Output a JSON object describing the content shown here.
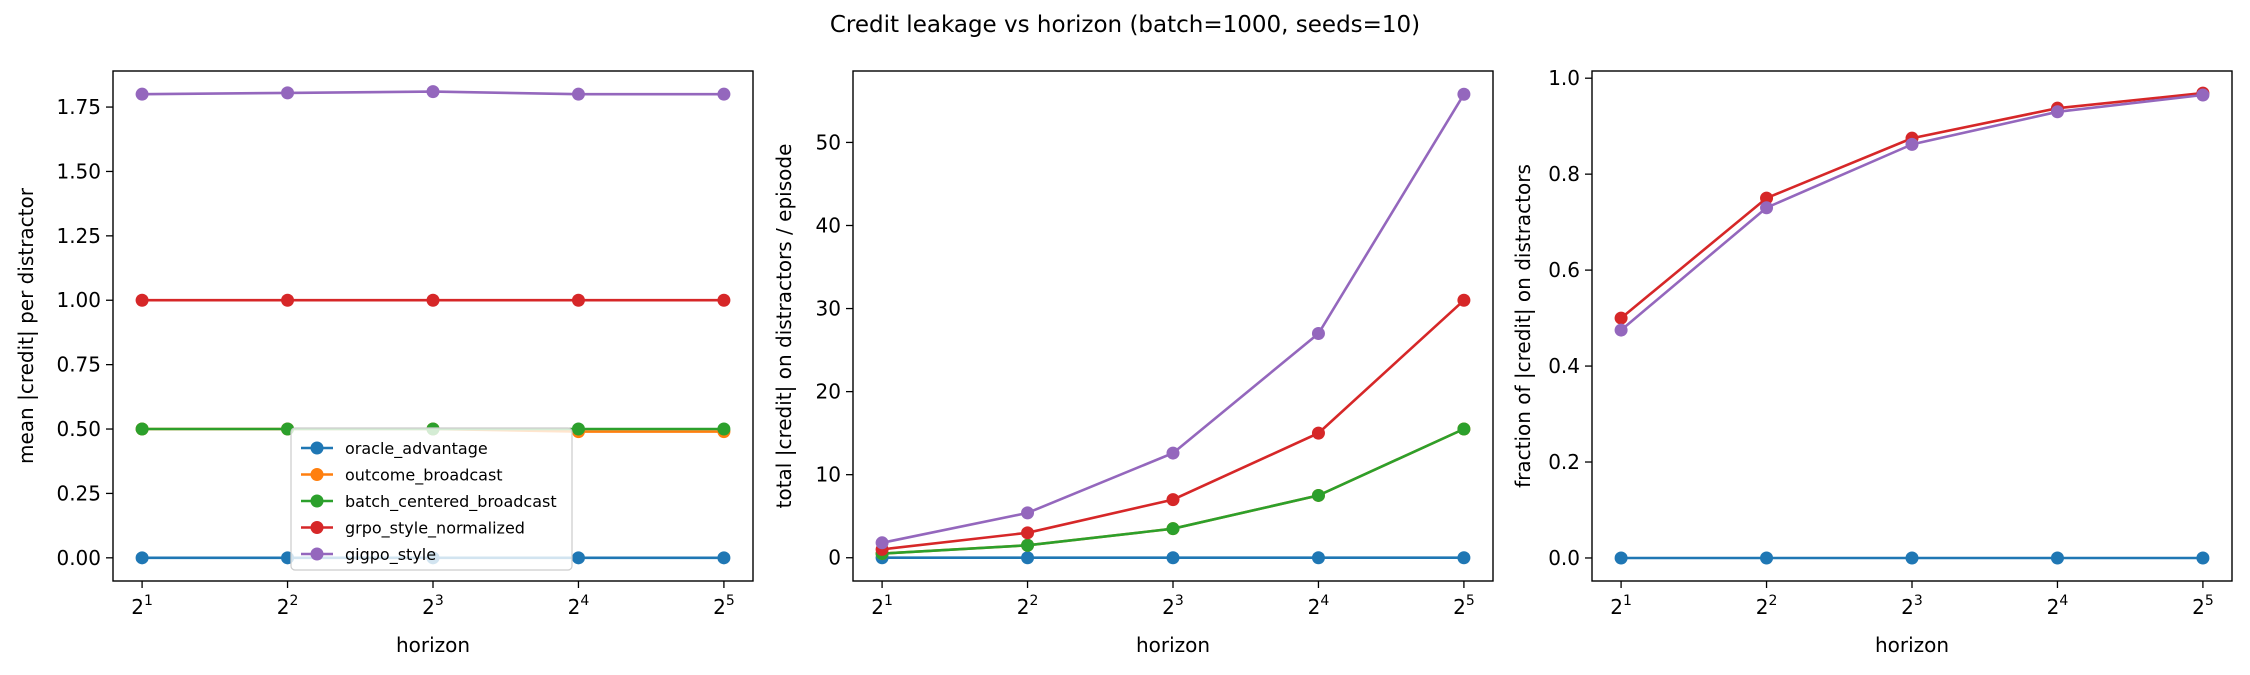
{
  "title": "Credit leakage vs horizon (batch=1000, seeds=10)",
  "colors": {
    "oracle_advantage": "#1f77b4",
    "outcome_broadcast": "#ff7f0e",
    "batch_centered_broadcast": "#2ca02c",
    "grpo_style_normalized": "#d62728",
    "gigpo_style": "#9467bd"
  },
  "chart_data": [
    {
      "type": "line",
      "x": [
        2,
        4,
        8,
        16,
        32
      ],
      "x_tick_labels": [
        {
          "base": "2",
          "exp": "1"
        },
        {
          "base": "2",
          "exp": "2"
        },
        {
          "base": "2",
          "exp": "3"
        },
        {
          "base": "2",
          "exp": "4"
        },
        {
          "base": "2",
          "exp": "5"
        }
      ],
      "xscale": "log2",
      "xlabel": "horizon",
      "ylabel": "mean |credit| per distractor",
      "ylim": [
        -0.09,
        1.89
      ],
      "yticks": [
        "0.00",
        "0.25",
        "0.50",
        "0.75",
        "1.00",
        "1.25",
        "1.50",
        "1.75"
      ],
      "grid": false,
      "legend": "lower-center",
      "series": [
        {
          "name": "oracle_advantage",
          "values": [
            0,
            0,
            0,
            0,
            0
          ]
        },
        {
          "name": "outcome_broadcast",
          "values": [
            0.5,
            0.5,
            0.5,
            0.49,
            0.49
          ]
        },
        {
          "name": "batch_centered_broadcast",
          "values": [
            0.5,
            0.5,
            0.5,
            0.5,
            0.5
          ]
        },
        {
          "name": "grpo_style_normalized",
          "values": [
            1.0,
            1.0,
            1.0,
            1.0,
            1.0
          ]
        },
        {
          "name": "gigpo_style",
          "values": [
            1.8,
            1.805,
            1.81,
            1.8,
            1.8
          ]
        }
      ]
    },
    {
      "type": "line",
      "x": [
        2,
        4,
        8,
        16,
        32
      ],
      "x_tick_labels": [
        {
          "base": "2",
          "exp": "1"
        },
        {
          "base": "2",
          "exp": "2"
        },
        {
          "base": "2",
          "exp": "3"
        },
        {
          "base": "2",
          "exp": "4"
        },
        {
          "base": "2",
          "exp": "5"
        }
      ],
      "xscale": "log2",
      "xlabel": "horizon",
      "ylabel": "total |credit| on distractors / episode",
      "ylim": [
        -2.8,
        58.6
      ],
      "yticks": [
        "0",
        "10",
        "20",
        "30",
        "40",
        "50"
      ],
      "grid": false,
      "series": [
        {
          "name": "oracle_advantage",
          "values": [
            0,
            0,
            0,
            0,
            0
          ]
        },
        {
          "name": "outcome_broadcast",
          "values": [
            0.5,
            1.5,
            3.5,
            7.5,
            15.5
          ]
        },
        {
          "name": "batch_centered_broadcast",
          "values": [
            0.5,
            1.5,
            3.5,
            7.5,
            15.5
          ]
        },
        {
          "name": "grpo_style_normalized",
          "values": [
            1.0,
            3.0,
            7.0,
            15.0,
            31.0
          ]
        },
        {
          "name": "gigpo_style",
          "values": [
            1.8,
            5.4,
            12.6,
            27.0,
            55.8
          ]
        }
      ]
    },
    {
      "type": "line",
      "x": [
        2,
        4,
        8,
        16,
        32
      ],
      "x_tick_labels": [
        {
          "base": "2",
          "exp": "1"
        },
        {
          "base": "2",
          "exp": "2"
        },
        {
          "base": "2",
          "exp": "3"
        },
        {
          "base": "2",
          "exp": "4"
        },
        {
          "base": "2",
          "exp": "5"
        }
      ],
      "xscale": "log2",
      "xlabel": "horizon",
      "ylabel": "fraction of |credit| on distractors",
      "ylim": [
        -0.048,
        1.015
      ],
      "yticks": [
        "0.0",
        "0.2",
        "0.4",
        "0.6",
        "0.8",
        "1.0"
      ],
      "grid": false,
      "series": [
        {
          "name": "oracle_advantage",
          "values": [
            0,
            0,
            0,
            0,
            0
          ]
        },
        {
          "name": "grpo_style_normalized",
          "values": [
            0.5,
            0.75,
            0.875,
            0.9375,
            0.969
          ]
        },
        {
          "name": "gigpo_style",
          "values": [
            0.475,
            0.73,
            0.862,
            0.93,
            0.965
          ]
        }
      ]
    }
  ]
}
